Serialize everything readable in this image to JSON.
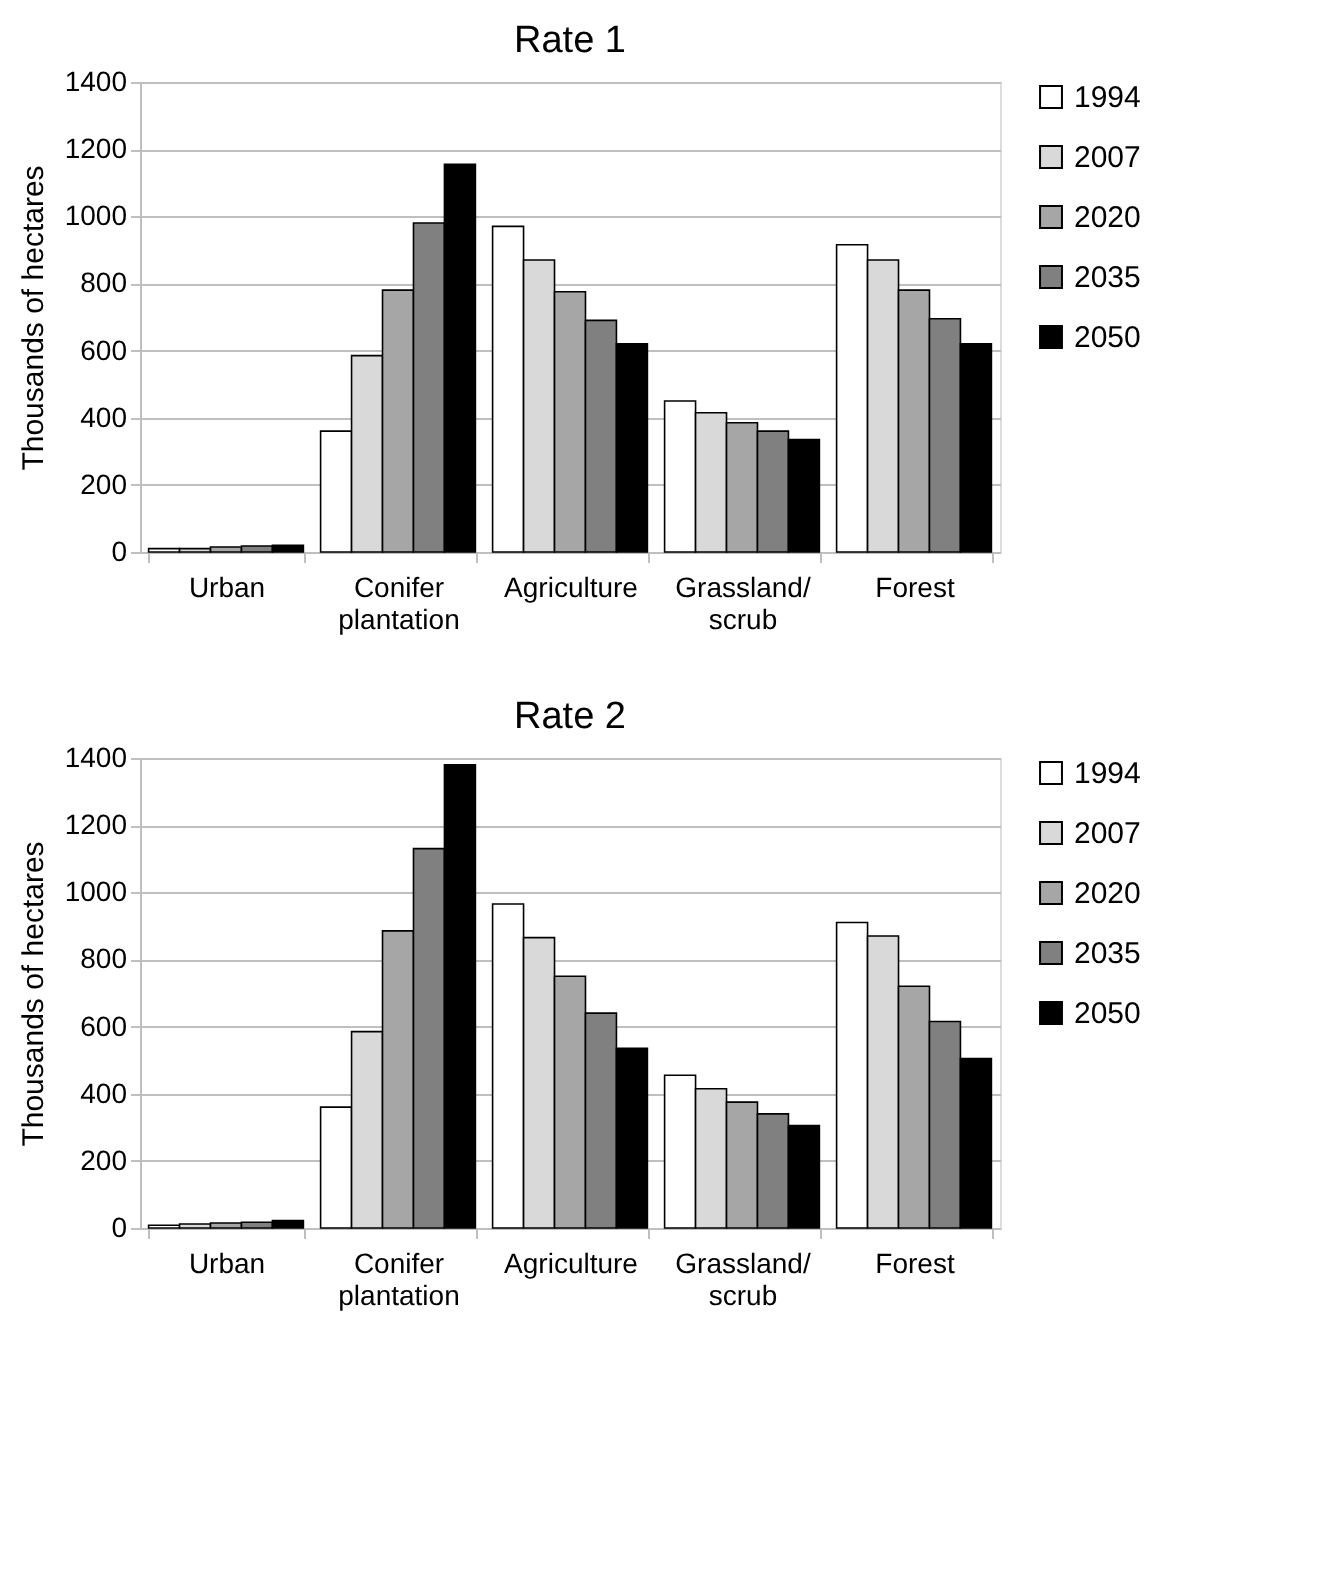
{
  "chart_data": [
    {
      "type": "bar",
      "title": "Rate 1",
      "ylabel": "Thousands of hectares",
      "categories": [
        "Urban",
        "Conifer plantation",
        "Agriculture",
        "Grassland/ scrub",
        "Forest"
      ],
      "ylim": [
        0,
        1400
      ],
      "yticks": [
        0,
        200,
        400,
        600,
        800,
        1000,
        1200,
        1400
      ],
      "grid": "y",
      "legend": "right",
      "series": [
        {
          "name": "1994",
          "color": "#ffffff",
          "values": [
            10,
            360,
            970,
            450,
            915
          ]
        },
        {
          "name": "2007",
          "color": "#d9d9d9",
          "values": [
            10,
            585,
            870,
            415,
            870
          ]
        },
        {
          "name": "2020",
          "color": "#a6a6a6",
          "values": [
            15,
            780,
            775,
            385,
            780
          ]
        },
        {
          "name": "2035",
          "color": "#808080",
          "values": [
            18,
            980,
            690,
            360,
            695
          ]
        },
        {
          "name": "2050",
          "color": "#000000",
          "values": [
            20,
            1155,
            620,
            335,
            620
          ]
        }
      ]
    },
    {
      "type": "bar",
      "title": "Rate 2",
      "ylabel": "Thousands of hectares",
      "categories": [
        "Urban",
        "Conifer plantation",
        "Agriculture",
        "Grassland/ scrub",
        "Forest"
      ],
      "ylim": [
        0,
        1400
      ],
      "yticks": [
        0,
        200,
        400,
        600,
        800,
        1000,
        1200,
        1400
      ],
      "grid": "y",
      "legend": "right",
      "series": [
        {
          "name": "1994",
          "color": "#ffffff",
          "values": [
            8,
            360,
            965,
            455,
            910
          ]
        },
        {
          "name": "2007",
          "color": "#d9d9d9",
          "values": [
            12,
            585,
            865,
            415,
            870
          ]
        },
        {
          "name": "2020",
          "color": "#a6a6a6",
          "values": [
            15,
            885,
            750,
            375,
            720
          ]
        },
        {
          "name": "2035",
          "color": "#808080",
          "values": [
            17,
            1130,
            640,
            340,
            615
          ]
        },
        {
          "name": "2050",
          "color": "#000000",
          "values": [
            22,
            1380,
            535,
            305,
            505
          ]
        }
      ]
    }
  ]
}
